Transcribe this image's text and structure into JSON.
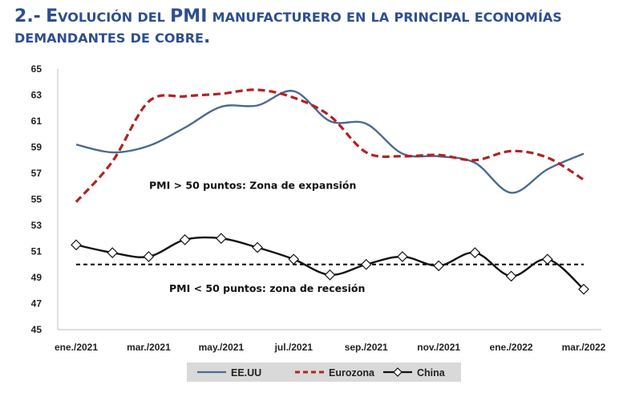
{
  "title_line1": "2.- Evolución del PMI manufacturero en la principal economías",
  "title_line2": "demandantes de cobre.",
  "chart_data": {
    "type": "line",
    "x_labels": [
      "ene./2021",
      "mar./2021",
      "may./2021",
      "jul./2021",
      "sep./2021",
      "nov./2021",
      "ene./2022",
      "mar./2022"
    ],
    "x": [
      "ene./2021",
      "feb./2021",
      "mar./2021",
      "abr./2021",
      "may./2021",
      "jun./2021",
      "jul./2021",
      "ago./2021",
      "sep./2021",
      "oct./2021",
      "nov./2021",
      "dic./2021",
      "ene./2022",
      "feb./2022",
      "mar./2022"
    ],
    "y_ticks": [
      45,
      47,
      49,
      51,
      53,
      55,
      57,
      59,
      61,
      63,
      65
    ],
    "ylim": [
      45,
      65
    ],
    "series": [
      {
        "name": "EE.UU",
        "color": "#4a6a8f",
        "style": "solid",
        "marker": "none",
        "values": [
          59.2,
          58.6,
          59.1,
          60.5,
          62.1,
          62.2,
          63.3,
          61.0,
          60.8,
          58.5,
          58.3,
          57.8,
          55.5,
          57.3,
          58.5
        ]
      },
      {
        "name": "Eurozona",
        "color": "#b22222",
        "style": "dashed",
        "marker": "none",
        "values": [
          54.8,
          57.9,
          62.5,
          62.9,
          63.1,
          63.4,
          62.8,
          61.4,
          58.6,
          58.3,
          58.4,
          58.0,
          58.7,
          58.2,
          56.5
        ]
      },
      {
        "name": "China",
        "color": "#111111",
        "style": "solid",
        "marker": "diamond",
        "values": [
          51.5,
          50.9,
          50.6,
          51.9,
          52.0,
          51.3,
          50.4,
          49.2,
          50.0,
          50.6,
          49.9,
          50.9,
          49.1,
          50.4,
          48.1
        ]
      }
    ],
    "reference_line": {
      "value": 50,
      "style": "dashed",
      "color": "#000000"
    },
    "annotations": [
      {
        "text": "PMI > 50 puntos: Zona de expansión",
        "y": 55.8
      },
      {
        "text": "PMI < 50 puntos: zona de recesión",
        "y": 47.9
      }
    ],
    "legend_position": "bottom"
  }
}
